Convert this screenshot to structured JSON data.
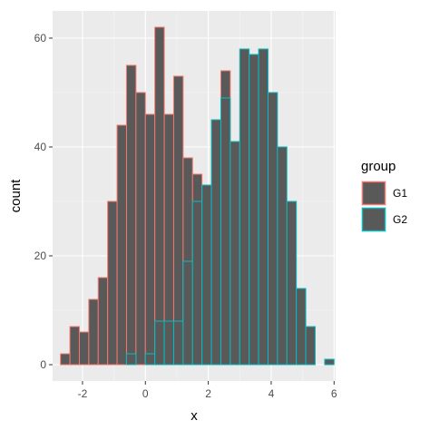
{
  "chart_data": {
    "type": "bar",
    "subtype": "histogram-overlay",
    "xlabel": "x",
    "ylabel": "count",
    "xlim": [
      -2.95,
      6.05
    ],
    "ylim": [
      -3,
      65
    ],
    "x_ticks": [
      -2,
      0,
      2,
      4,
      6
    ],
    "x_tick_labels": [
      "-2",
      "0",
      "2",
      "4",
      "6"
    ],
    "y_ticks": [
      0,
      20,
      40,
      60
    ],
    "y_tick_labels": [
      "0",
      "20",
      "40",
      "60"
    ],
    "grid": true,
    "background": "#ebebeb",
    "bin_width": 0.3,
    "legend": {
      "title": "group",
      "position": "right",
      "entries": [
        "G1",
        "G2"
      ]
    },
    "series": [
      {
        "name": "G1",
        "outline_color": "#f8766d",
        "fill_color": "#595959",
        "bins": [
          {
            "x": -2.55,
            "count": 2
          },
          {
            "x": -2.25,
            "count": 7
          },
          {
            "x": -1.95,
            "count": 6
          },
          {
            "x": -1.65,
            "count": 12
          },
          {
            "x": -1.35,
            "count": 16
          },
          {
            "x": -1.05,
            "count": 30
          },
          {
            "x": -0.75,
            "count": 44
          },
          {
            "x": -0.45,
            "count": 55
          },
          {
            "x": -0.15,
            "count": 50
          },
          {
            "x": 0.15,
            "count": 46
          },
          {
            "x": 0.45,
            "count": 62
          },
          {
            "x": 0.75,
            "count": 46
          },
          {
            "x": 1.05,
            "count": 53
          },
          {
            "x": 1.35,
            "count": 38
          },
          {
            "x": 1.65,
            "count": 35
          },
          {
            "x": 1.95,
            "count": 33
          },
          {
            "x": 2.25,
            "count": 45
          },
          {
            "x": 2.55,
            "count": 54
          },
          {
            "x": 2.85,
            "count": 41
          },
          {
            "x": 3.15,
            "count": 30
          },
          {
            "x": 3.45,
            "count": 14
          },
          {
            "x": 3.75,
            "count": 5
          },
          {
            "x": 4.05,
            "count": 1
          }
        ]
      },
      {
        "name": "G2",
        "outline_color": "#00bfc4",
        "fill_color": "#595959",
        "bins": [
          {
            "x": -0.45,
            "count": 2
          },
          {
            "x": 0.15,
            "count": 2
          },
          {
            "x": 0.45,
            "count": 8
          },
          {
            "x": 0.75,
            "count": 8
          },
          {
            "x": 1.05,
            "count": 8
          },
          {
            "x": 1.35,
            "count": 19
          },
          {
            "x": 1.65,
            "count": 30
          },
          {
            "x": 1.95,
            "count": 33
          },
          {
            "x": 2.25,
            "count": 45
          },
          {
            "x": 2.55,
            "count": 49
          },
          {
            "x": 2.85,
            "count": 41
          },
          {
            "x": 3.15,
            "count": 58
          },
          {
            "x": 3.45,
            "count": 57
          },
          {
            "x": 3.75,
            "count": 58
          },
          {
            "x": 4.05,
            "count": 50
          },
          {
            "x": 4.35,
            "count": 40
          },
          {
            "x": 4.65,
            "count": 30
          },
          {
            "x": 4.95,
            "count": 14
          },
          {
            "x": 5.25,
            "count": 7
          },
          {
            "x": 5.55,
            "count": 0
          },
          {
            "x": 5.85,
            "count": 1
          }
        ]
      }
    ]
  }
}
